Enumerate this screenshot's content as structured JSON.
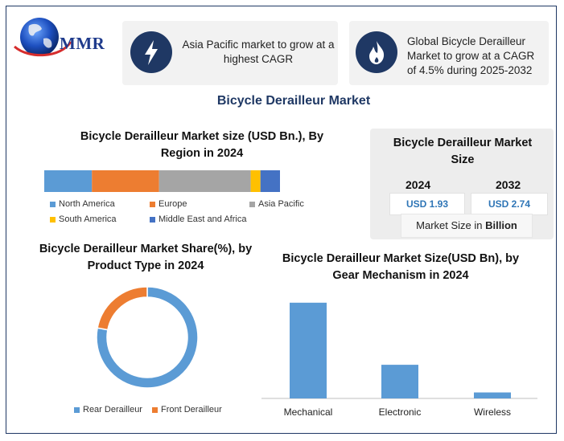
{
  "brand": {
    "name": "MMR"
  },
  "cards": [
    {
      "text": "Asia Pacific market to grow at a highest CAGR",
      "icon": "lightning-icon"
    },
    {
      "text": "Global Bicycle Derailleur Market to grow at a CAGR of 4.5% during 2025-2032",
      "icon": "flame-icon"
    }
  ],
  "main_title": "Bicycle Derailleur Market",
  "market_size": {
    "title": "Bicycle Derailleur Market Size",
    "year1": "2024",
    "year2": "2032",
    "value1": "USD 1.93",
    "value2": "USD 2.74",
    "unit_prefix": "Market Size in",
    "unit_bold": "Billion"
  },
  "colors": {
    "blue": "#5b9bd5",
    "orange": "#ed7d31",
    "gray": "#a5a5a5",
    "yellow": "#ffc000",
    "darkblue": "#4472c4",
    "navy": "#1f3864"
  },
  "chart_data": [
    {
      "type": "bar",
      "orientation": "horizontal-stacked",
      "title": "Bicycle Derailleur Market size (USD Bn.), By Region in 2024",
      "series": [
        {
          "name": "North America",
          "values": [
            0.39
          ]
        },
        {
          "name": "Europe",
          "values": [
            0.55
          ]
        },
        {
          "name": "Asia Pacific",
          "values": [
            0.75
          ]
        },
        {
          "name": "South America",
          "values": [
            0.08
          ]
        },
        {
          "name": "Middle East and Africa",
          "values": [
            0.16
          ]
        }
      ],
      "legend_position": "bottom"
    },
    {
      "type": "pie",
      "variant": "donut",
      "title": "Bicycle Derailleur Market Share(%), by Product Type in 2024",
      "categories": [
        "Rear Derailleur",
        "Front Derailleur"
      ],
      "values": [
        78,
        22
      ],
      "legend_position": "bottom"
    },
    {
      "type": "bar",
      "title": "Bicycle Derailleur Market Size(USD Bn), by Gear Mechanism in 2024",
      "categories": [
        "Mechanical",
        "Electronic",
        "Wireless"
      ],
      "values": [
        1.28,
        0.45,
        0.08
      ],
      "ylim": [
        0,
        1.45
      ],
      "grid": false
    }
  ]
}
